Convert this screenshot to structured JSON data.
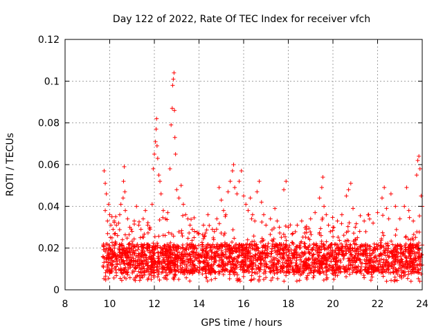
{
  "chart_data": {
    "type": "scatter",
    "title": "Day 122 of 2022, Rate Of TEC Index for receiver vfch",
    "xlabel": "GPS time / hours",
    "ylabel": "ROTI / TECUs",
    "xlim": [
      8,
      24
    ],
    "ylim": [
      0,
      0.12
    ],
    "xticks": [
      8,
      10,
      12,
      14,
      16,
      18,
      20,
      22,
      24
    ],
    "xtick_labels": [
      "8",
      "10",
      "12",
      "14",
      "16",
      "18",
      "20",
      "22",
      "24"
    ],
    "yticks": [
      0,
      0.02,
      0.04,
      0.06,
      0.08,
      0.1,
      0.12
    ],
    "ytick_labels": [
      "0",
      "0.02",
      "0.04",
      "0.06",
      "0.08",
      "0.1",
      "0.12"
    ],
    "grid": true,
    "marker": "+",
    "color": "#ff0000",
    "series": [
      {
        "name": "ROTI",
        "points": [
          [
            9.75,
            0.057
          ],
          [
            9.8,
            0.051
          ],
          [
            9.85,
            0.046
          ],
          [
            9.8,
            0.038
          ],
          [
            9.9,
            0.033
          ],
          [
            9.95,
            0.041
          ],
          [
            10.0,
            0.036
          ],
          [
            10.05,
            0.031
          ],
          [
            10.1,
            0.035
          ],
          [
            10.15,
            0.029
          ],
          [
            10.2,
            0.033
          ],
          [
            10.25,
            0.027
          ],
          [
            10.3,
            0.031
          ],
          [
            10.35,
            0.026
          ],
          [
            10.4,
            0.032
          ],
          [
            10.45,
            0.036
          ],
          [
            10.5,
            0.041
          ],
          [
            10.6,
            0.044
          ],
          [
            10.65,
            0.059
          ],
          [
            10.62,
            0.052
          ],
          [
            10.68,
            0.047
          ],
          [
            10.7,
            0.038
          ],
          [
            10.8,
            0.034
          ],
          [
            10.9,
            0.03
          ],
          [
            11.0,
            0.028
          ],
          [
            11.1,
            0.033
          ],
          [
            11.2,
            0.04
          ],
          [
            11.3,
            0.031
          ],
          [
            11.4,
            0.029
          ],
          [
            11.5,
            0.034
          ],
          [
            11.6,
            0.038
          ],
          [
            11.7,
            0.031
          ],
          [
            11.8,
            0.03
          ],
          [
            11.9,
            0.041
          ],
          [
            11.95,
            0.058
          ],
          [
            12.0,
            0.065
          ],
          [
            12.05,
            0.071
          ],
          [
            12.08,
            0.077
          ],
          [
            12.1,
            0.082
          ],
          [
            12.12,
            0.069
          ],
          [
            12.15,
            0.063
          ],
          [
            12.2,
            0.055
          ],
          [
            12.25,
            0.052
          ],
          [
            12.3,
            0.046
          ],
          [
            12.4,
            0.038
          ],
          [
            12.5,
            0.034
          ],
          [
            12.6,
            0.037
          ],
          [
            12.7,
            0.058
          ],
          [
            12.75,
            0.079
          ],
          [
            12.8,
            0.087
          ],
          [
            12.82,
            0.098
          ],
          [
            12.85,
            0.101
          ],
          [
            12.88,
            0.104
          ],
          [
            12.9,
            0.086
          ],
          [
            12.92,
            0.073
          ],
          [
            12.95,
            0.065
          ],
          [
            13.0,
            0.048
          ],
          [
            13.1,
            0.044
          ],
          [
            13.2,
            0.05
          ],
          [
            13.3,
            0.041
          ],
          [
            13.4,
            0.036
          ],
          [
            13.5,
            0.034
          ],
          [
            13.6,
            0.031
          ],
          [
            13.7,
            0.029
          ],
          [
            13.8,
            0.028
          ],
          [
            14.0,
            0.027
          ],
          [
            14.2,
            0.031
          ],
          [
            14.4,
            0.036
          ],
          [
            14.6,
            0.029
          ],
          [
            14.8,
            0.034
          ],
          [
            14.9,
            0.049
          ],
          [
            15.0,
            0.043
          ],
          [
            15.1,
            0.038
          ],
          [
            15.2,
            0.036
          ],
          [
            15.3,
            0.047
          ],
          [
            15.4,
            0.052
          ],
          [
            15.5,
            0.057
          ],
          [
            15.55,
            0.06
          ],
          [
            15.6,
            0.049
          ],
          [
            15.7,
            0.046
          ],
          [
            15.8,
            0.052
          ],
          [
            15.9,
            0.057
          ],
          [
            16.0,
            0.045
          ],
          [
            16.1,
            0.041
          ],
          [
            16.2,
            0.038
          ],
          [
            16.3,
            0.044
          ],
          [
            16.4,
            0.036
          ],
          [
            16.5,
            0.033
          ],
          [
            16.6,
            0.047
          ],
          [
            16.7,
            0.052
          ],
          [
            16.8,
            0.042
          ],
          [
            16.9,
            0.036
          ],
          [
            17.0,
            0.031
          ],
          [
            17.2,
            0.034
          ],
          [
            17.4,
            0.039
          ],
          [
            17.5,
            0.033
          ],
          [
            17.6,
            0.03
          ],
          [
            17.8,
            0.048
          ],
          [
            17.9,
            0.052
          ],
          [
            18.0,
            0.03
          ],
          [
            18.2,
            0.027
          ],
          [
            18.4,
            0.031
          ],
          [
            18.6,
            0.033
          ],
          [
            18.8,
            0.029
          ],
          [
            19.0,
            0.034
          ],
          [
            19.2,
            0.037
          ],
          [
            19.4,
            0.044
          ],
          [
            19.5,
            0.049
          ],
          [
            19.55,
            0.054
          ],
          [
            19.6,
            0.04
          ],
          [
            19.7,
            0.036
          ],
          [
            19.8,
            0.031
          ],
          [
            20.0,
            0.03
          ],
          [
            20.2,
            0.033
          ],
          [
            20.4,
            0.036
          ],
          [
            20.6,
            0.045
          ],
          [
            20.7,
            0.048
          ],
          [
            20.8,
            0.051
          ],
          [
            20.9,
            0.039
          ],
          [
            21.0,
            0.03
          ],
          [
            21.2,
            0.028
          ],
          [
            21.4,
            0.033
          ],
          [
            21.6,
            0.036
          ],
          [
            21.8,
            0.032
          ],
          [
            22.0,
            0.037
          ],
          [
            22.2,
            0.044
          ],
          [
            22.3,
            0.049
          ],
          [
            22.4,
            0.039
          ],
          [
            22.5,
            0.034
          ],
          [
            22.6,
            0.046
          ],
          [
            22.8,
            0.04
          ],
          [
            23.0,
            0.034
          ],
          [
            23.2,
            0.04
          ],
          [
            23.3,
            0.049
          ],
          [
            23.4,
            0.038
          ],
          [
            23.6,
            0.033
          ],
          [
            23.75,
            0.055
          ],
          [
            23.8,
            0.062
          ],
          [
            23.85,
            0.064
          ],
          [
            23.9,
            0.058
          ],
          [
            23.95,
            0.045
          ],
          [
            24.0,
            0.04
          ]
        ],
        "background_band": {
          "x_range": [
            9.7,
            24.0
          ],
          "y_min": 0.004,
          "y_typical_low": 0.008,
          "y_typical_high": 0.028,
          "description_note": "dense cloud of + markers between 0.004 and ~0.03 across 9.7–24 h"
        }
      }
    ]
  }
}
